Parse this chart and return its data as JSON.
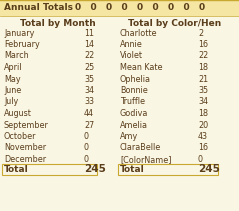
{
  "annual_label": "Annual Totals",
  "annual_values": "0   0   0   0   0   0   0   0   0",
  "header_bg": "#f5e6a3",
  "body_bg": "#faf6e4",
  "months": [
    "January",
    "February",
    "March",
    "April",
    "May",
    "June",
    "July",
    "August",
    "September",
    "October",
    "November",
    "December"
  ],
  "month_values": [
    11,
    14,
    22,
    25,
    35,
    34,
    33,
    44,
    27,
    0,
    0,
    0
  ],
  "month_total": 245,
  "hens": [
    "Charlotte",
    "Annie",
    "Violet",
    "Mean Kate",
    "Ophelia",
    "Bonnie",
    "Truffle",
    "Godiva",
    "Amelia",
    "Amy",
    "ClaraBelle",
    "[ColorName]"
  ],
  "hen_values": [
    2,
    16,
    22,
    18,
    21,
    35,
    34,
    18,
    20,
    43,
    16,
    0
  ],
  "hen_total": 245,
  "col1_header": "Total by Month",
  "col2_header": "Total by Color/Hen",
  "text_color": "#5a3e1b",
  "total_label": "Total",
  "border_color": "#c8a830"
}
